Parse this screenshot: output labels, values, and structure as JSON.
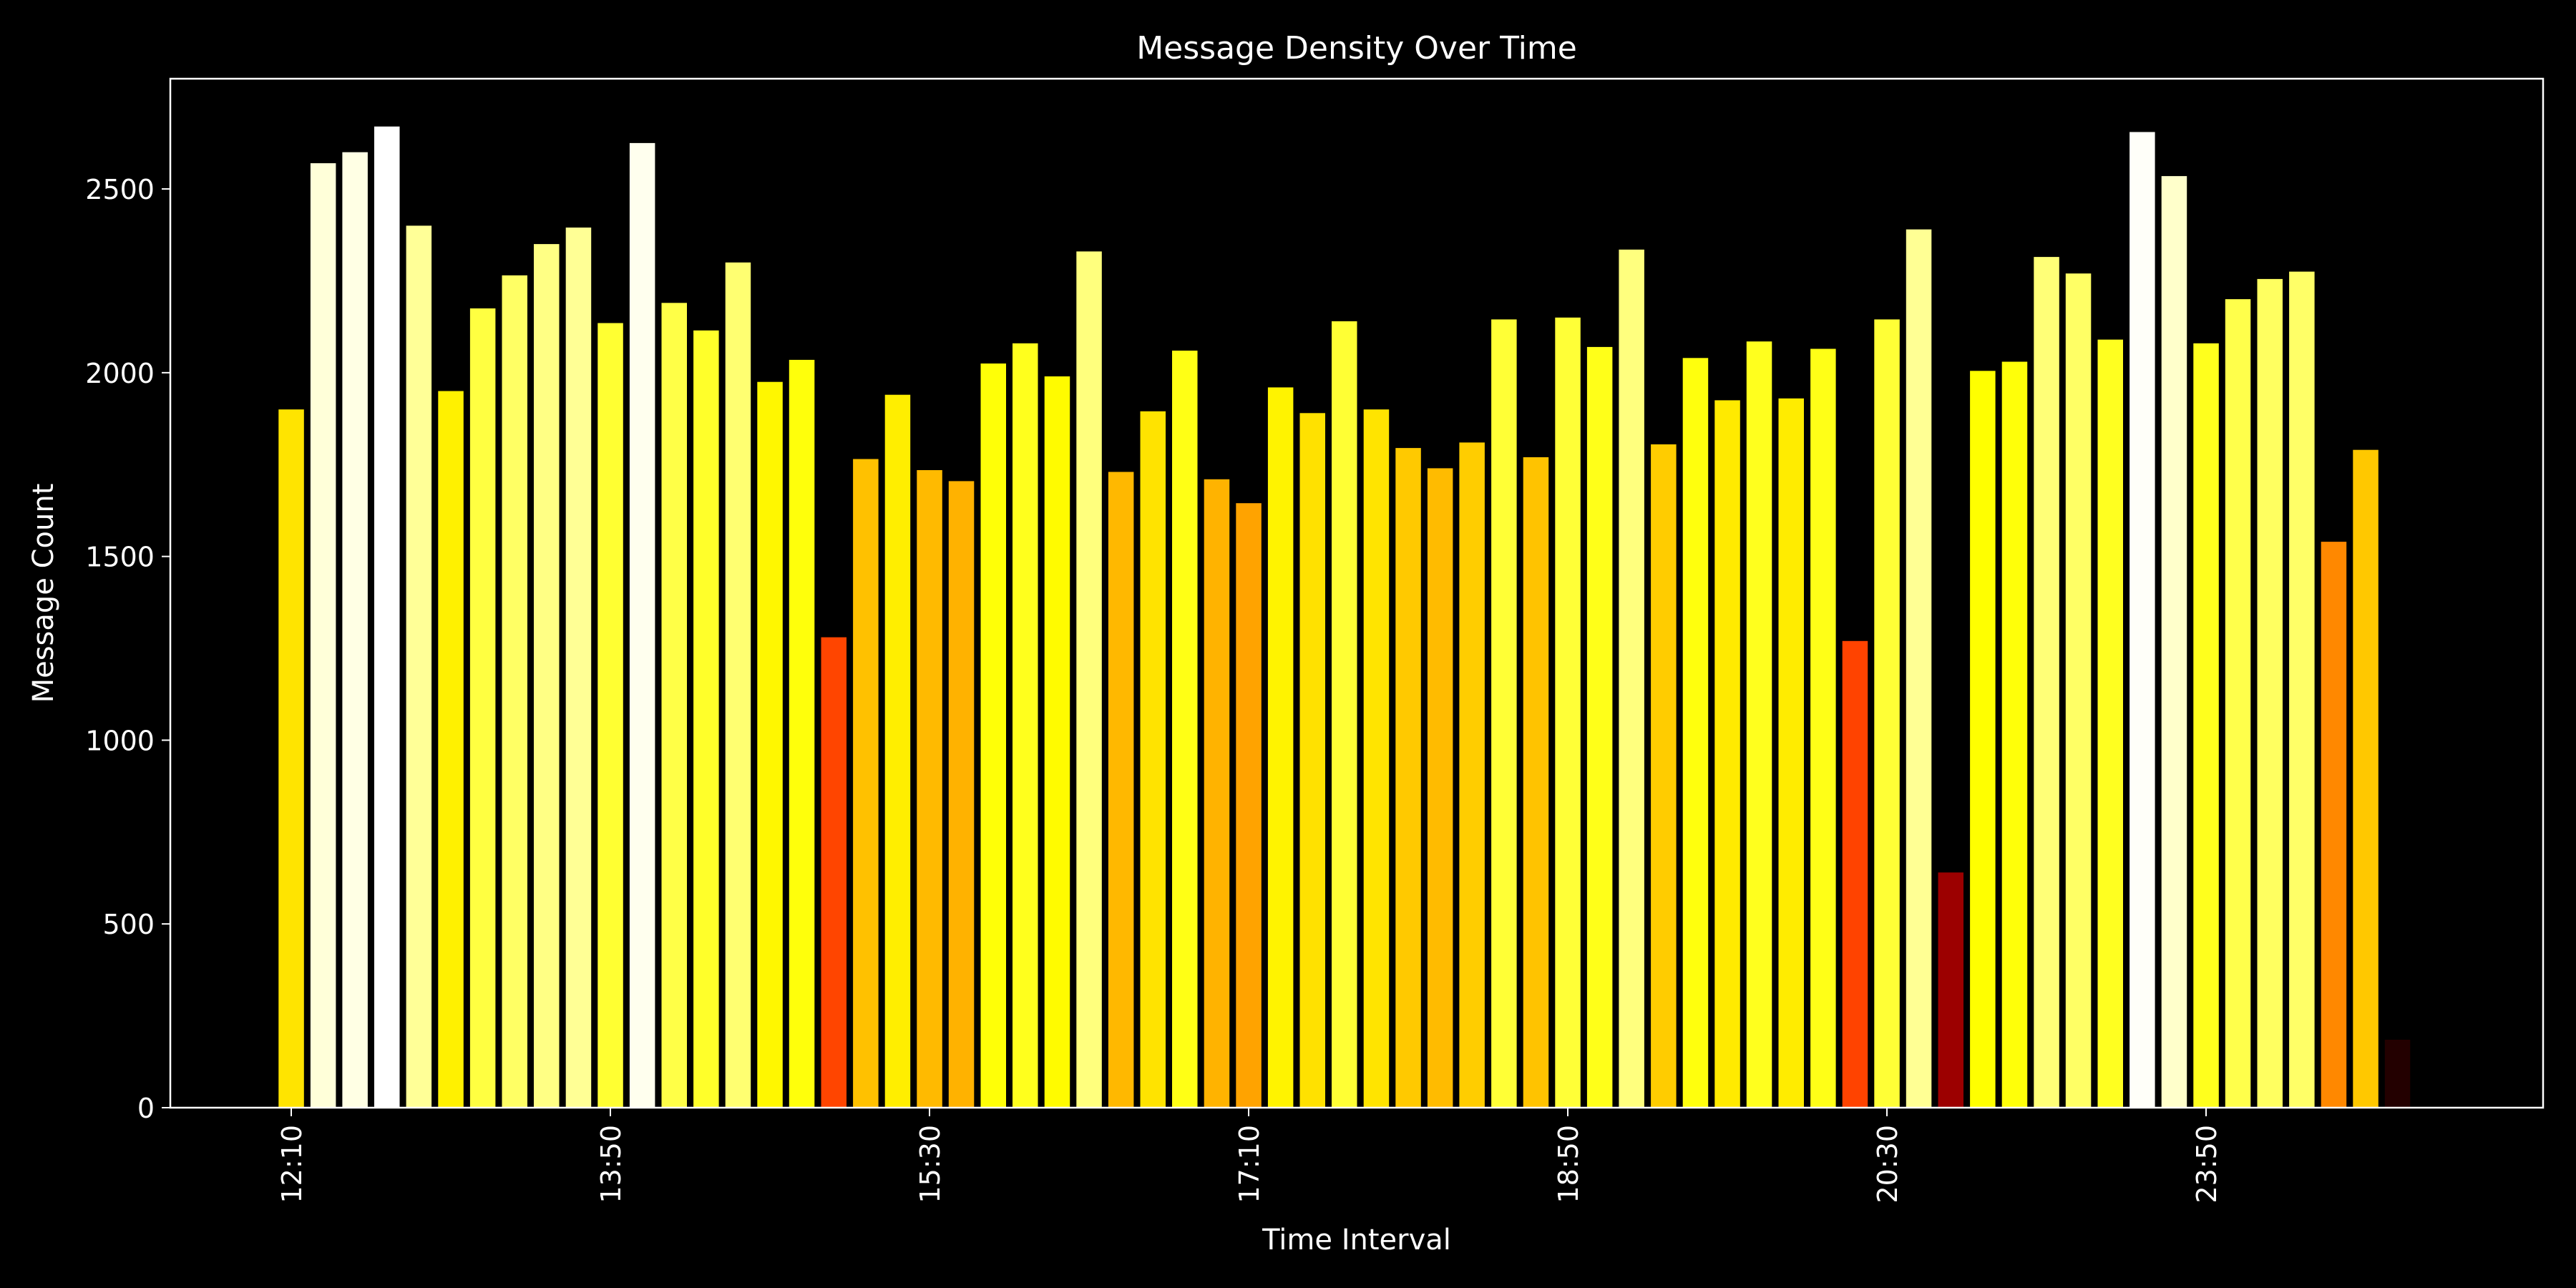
{
  "chart_data": {
    "type": "bar",
    "title": "Message Density Over Time",
    "xlabel": "Time Interval",
    "ylabel": "Message Count",
    "ylim": [
      0,
      2800
    ],
    "y_ticks": [
      0,
      500,
      1000,
      1500,
      2000,
      2500
    ],
    "x_tick_labels": [
      "12:10",
      "13:50",
      "15:30",
      "17:10",
      "18:50",
      "20:30",
      "23:50"
    ],
    "x_tick_bar_index": [
      0,
      10,
      20,
      30,
      40,
      50,
      60
    ],
    "values": [
      1900,
      2570,
      2600,
      2670,
      2400,
      1950,
      2175,
      2265,
      2350,
      2395,
      2135,
      2625,
      2190,
      2115,
      2300,
      1975,
      2035,
      1280,
      1765,
      1940,
      1735,
      1705,
      2025,
      2080,
      1990,
      2330,
      1730,
      1895,
      2060,
      1710,
      1645,
      1960,
      1890,
      2140,
      1900,
      1795,
      1740,
      1810,
      2145,
      1770,
      2150,
      2070,
      2335,
      1805,
      2040,
      1925,
      2085,
      1930,
      2065,
      1270,
      2145,
      2390,
      640,
      2005,
      2030,
      2315,
      2270,
      2090,
      2655,
      2535,
      2080,
      2200,
      2255,
      2275,
      1540,
      1790,
      185
    ],
    "colormap": "hot (color by value)",
    "colors": {
      "background": "#000000",
      "axes": "#ffffff",
      "text": "#ffffff"
    },
    "grid": false,
    "legend": "none"
  }
}
